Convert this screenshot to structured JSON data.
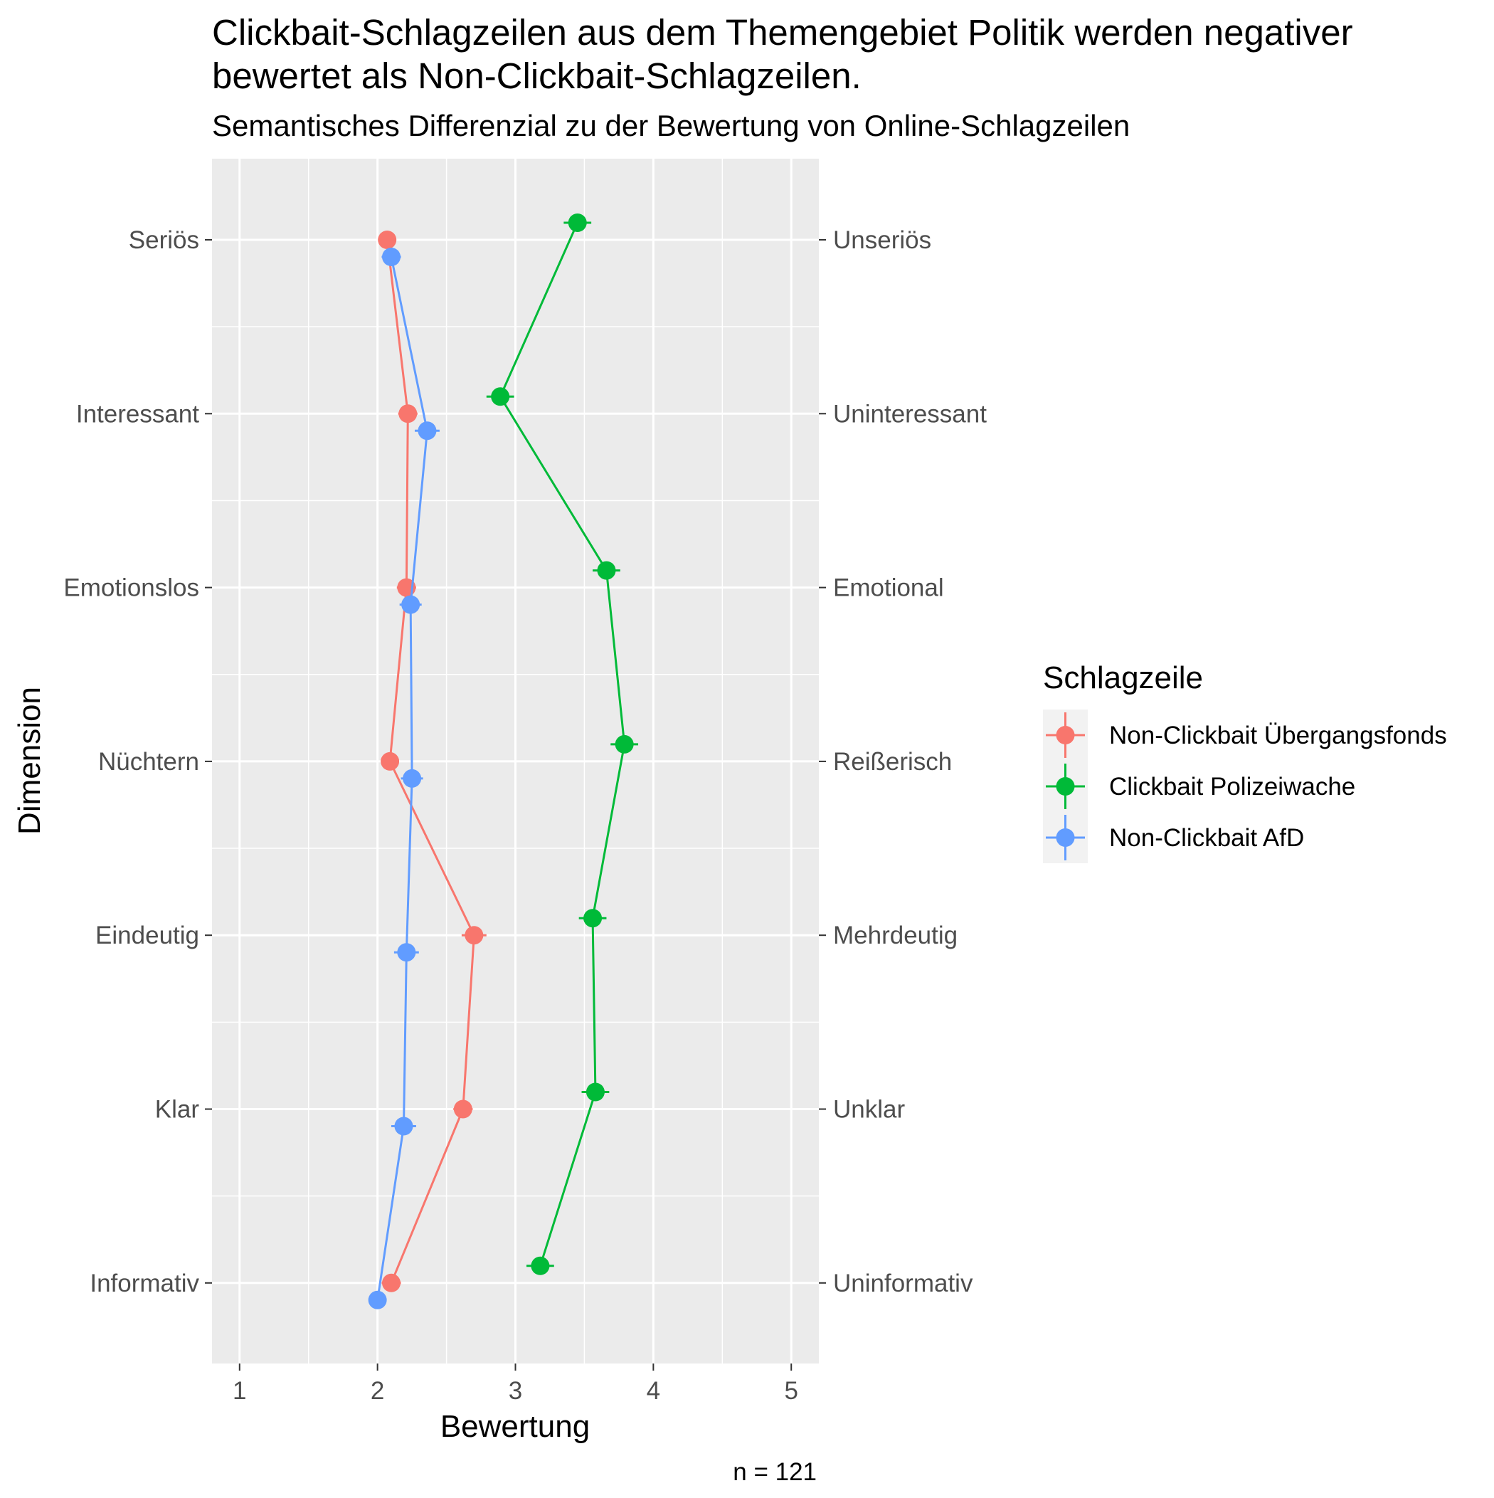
{
  "chart_data": {
    "type": "line",
    "title": "Clickbait-Schlagzeilen aus dem Themengebiet Politik werden negativer bewertet als Non-Clickbait-Schlagzeilen.",
    "title_lines": [
      "Clickbait-Schlagzeilen aus dem Themengebiet Politik werden negativer",
      "bewertet als Non-Clickbait-Schlagzeilen."
    ],
    "subtitle": "Semantisches Differenzial zu der Bewertung von Online-Schlagzeilen",
    "xlabel": "Bewertung",
    "ylabel": "Dimension",
    "caption": "n = 121",
    "xlim": [
      0.8,
      5.2
    ],
    "x_ticks": [
      1,
      2,
      3,
      4,
      5
    ],
    "dimensions_left": [
      "Seriös",
      "Interessant",
      "Emotionslos",
      "Nüchtern",
      "Eindeutig",
      "Klar",
      "Informativ"
    ],
    "dimensions_right": [
      "Unseriös",
      "Uninteressant",
      "Emotional",
      "Reißerisch",
      "Mehrdeutig",
      "Unklar",
      "Uninformativ"
    ],
    "legend_title": "Schlagzeile",
    "legend_position": "right",
    "grid": true,
    "background": "#ebebeb",
    "series": [
      {
        "name": "Non-Clickbait Übergangsfonds",
        "color": "#F8766D",
        "values": [
          2.07,
          2.22,
          2.21,
          2.09,
          2.7,
          2.62,
          2.1
        ],
        "errors": [
          0.06,
          0.07,
          0.07,
          0.06,
          0.09,
          0.07,
          0.07
        ]
      },
      {
        "name": "Clickbait Polizeiwache",
        "color": "#00BA38",
        "values": [
          3.45,
          2.89,
          3.66,
          3.79,
          3.56,
          3.58,
          3.18
        ],
        "errors": [
          0.1,
          0.1,
          0.1,
          0.1,
          0.1,
          0.1,
          0.1
        ]
      },
      {
        "name": "Non-Clickbait AfD",
        "color": "#619CFF",
        "values": [
          2.1,
          2.36,
          2.24,
          2.25,
          2.21,
          2.19,
          2.0
        ],
        "errors": [
          0.07,
          0.09,
          0.08,
          0.08,
          0.09,
          0.09,
          0.05
        ]
      }
    ]
  }
}
